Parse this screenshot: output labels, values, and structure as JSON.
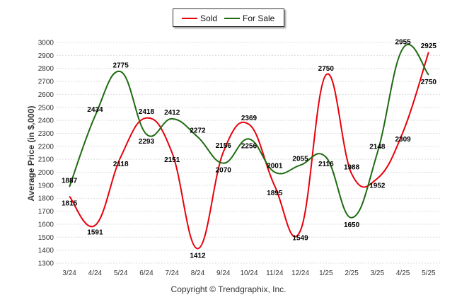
{
  "chart_data": {
    "type": "line",
    "title": "",
    "xlabel": "",
    "ylabel": "Average Price (in $,000)",
    "categories": [
      "3/24",
      "4/24",
      "5/24",
      "6/24",
      "7/24",
      "8/24",
      "9/24",
      "10/24",
      "11/24",
      "12/24",
      "1/25",
      "2/25",
      "3/25",
      "4/25",
      "5/25"
    ],
    "ylim": [
      1300,
      3000
    ],
    "yticks": [
      1300,
      1400,
      1500,
      1600,
      1700,
      1800,
      1900,
      2000,
      2100,
      2200,
      2300,
      2400,
      2500,
      2600,
      2700,
      2800,
      2900,
      3000
    ],
    "grid": true,
    "legend_position": "top-center",
    "series": [
      {
        "name": "Sold",
        "color": "#e8000b",
        "values": [
          1815,
          1591,
          2118,
          2418,
          2151,
          1412,
          2156,
          2369,
          1895,
          1549,
          2750,
          1988,
          1952,
          2309,
          2925
        ]
      },
      {
        "name": "For Sale",
        "color": "#1e6b11",
        "values": [
          1887,
          2434,
          2775,
          2293,
          2412,
          2272,
          2070,
          2256,
          2001,
          2055,
          2116,
          1650,
          2148,
          2955,
          2750
        ]
      }
    ]
  },
  "legend": {
    "sold": "Sold",
    "for_sale": "For Sale"
  },
  "footer": "Copyright © Trendgraphix, Inc."
}
